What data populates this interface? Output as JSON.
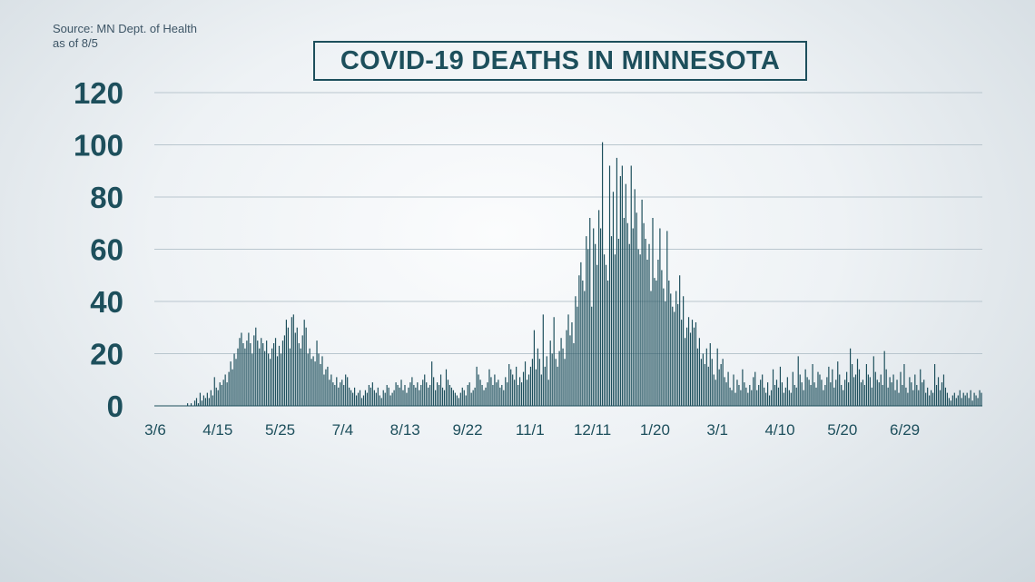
{
  "source": {
    "line1": "Source: MN Dept. of Health",
    "line2": "as of 8/5"
  },
  "title": "COVID-19 DEATHS IN MINNESOTA",
  "colors": {
    "bar": "#1d4f5c",
    "grid": "#b9c6ce",
    "text": "#1d4f5c"
  },
  "chart_data": {
    "type": "bar",
    "title": "COVID-19 DEATHS IN MINNESOTA",
    "xlabel": "",
    "ylabel": "",
    "ylim": [
      0,
      120
    ],
    "yticks": [
      0,
      20,
      40,
      60,
      80,
      100,
      120
    ],
    "xtick_labels": [
      "3/6",
      "4/15",
      "5/25",
      "7/4",
      "8/13",
      "9/22",
      "11/1",
      "12/11",
      "1/20",
      "3/1",
      "4/10",
      "5/20",
      "6/29"
    ],
    "grid": true,
    "legend": "none",
    "series": [
      {
        "values": [
          0,
          0,
          0,
          0,
          0,
          0,
          0,
          0,
          0,
          0,
          0,
          0,
          0,
          0,
          0,
          0,
          0,
          0,
          1,
          0,
          1,
          0,
          2,
          3,
          1,
          5,
          2,
          4,
          3,
          5,
          3,
          6,
          4,
          11,
          7,
          6,
          9,
          8,
          10,
          12,
          9,
          13,
          17,
          14,
          20,
          18,
          22,
          26,
          28,
          24,
          22,
          25,
          28,
          24,
          20,
          27,
          30,
          25,
          22,
          26,
          24,
          21,
          25,
          20,
          18,
          22,
          24,
          26,
          19,
          23,
          20,
          25,
          27,
          33,
          30,
          22,
          34,
          35,
          28,
          30,
          24,
          22,
          27,
          33,
          30,
          20,
          22,
          18,
          19,
          17,
          25,
          20,
          16,
          19,
          12,
          14,
          15,
          10,
          12,
          9,
          8,
          11,
          7,
          9,
          10,
          8,
          12,
          11,
          7,
          6,
          5,
          7,
          4,
          5,
          6,
          3,
          4,
          6,
          5,
          8,
          7,
          9,
          6,
          5,
          7,
          4,
          3,
          6,
          5,
          8,
          7,
          4,
          5,
          6,
          9,
          8,
          7,
          10,
          6,
          8,
          5,
          7,
          9,
          11,
          8,
          7,
          9,
          6,
          8,
          10,
          12,
          9,
          7,
          8,
          17,
          11,
          6,
          9,
          8,
          12,
          7,
          6,
          14,
          10,
          8,
          7,
          6,
          5,
          4,
          3,
          5,
          7,
          6,
          4,
          8,
          9,
          5,
          6,
          7,
          15,
          12,
          10,
          8,
          6,
          7,
          9,
          14,
          11,
          8,
          12,
          9,
          10,
          7,
          8,
          6,
          11,
          9,
          16,
          14,
          12,
          10,
          15,
          8,
          11,
          9,
          13,
          17,
          10,
          12,
          15,
          18,
          29,
          14,
          22,
          18,
          12,
          35,
          15,
          19,
          10,
          25,
          20,
          34,
          18,
          15,
          21,
          26,
          22,
          18,
          29,
          35,
          27,
          32,
          24,
          42,
          38,
          50,
          55,
          48,
          44,
          65,
          60,
          72,
          38,
          68,
          62,
          54,
          75,
          68,
          101,
          58,
          54,
          48,
          92,
          65,
          82,
          58,
          95,
          64,
          88,
          92,
          72,
          85,
          70,
          62,
          92,
          68,
          83,
          74,
          60,
          58,
          79,
          70,
          64,
          56,
          62,
          44,
          72,
          49,
          48,
          56,
          68,
          52,
          45,
          40,
          67,
          48,
          43,
          38,
          36,
          44,
          39,
          50,
          33,
          42,
          26,
          30,
          34,
          28,
          33,
          30,
          32,
          22,
          26,
          18,
          20,
          16,
          22,
          15,
          24,
          18,
          12,
          10,
          22,
          14,
          16,
          18,
          11,
          9,
          13,
          7,
          6,
          12,
          5,
          10,
          8,
          6,
          14,
          9,
          7,
          5,
          8,
          6,
          11,
          13,
          6,
          8,
          10,
          12,
          7,
          5,
          9,
          4,
          6,
          14,
          8,
          10,
          7,
          15,
          9,
          5,
          7,
          11,
          6,
          5,
          13,
          8,
          7,
          19,
          12,
          9,
          6,
          14,
          11,
          10,
          8,
          16,
          9,
          7,
          13,
          12,
          10,
          6,
          8,
          11,
          15,
          9,
          14,
          7,
          10,
          17,
          12,
          8,
          6,
          10,
          13,
          9,
          22,
          16,
          11,
          12,
          18,
          14,
          9,
          10,
          8,
          16,
          12,
          11,
          7,
          19,
          13,
          10,
          9,
          12,
          8,
          21,
          14,
          7,
          11,
          9,
          12,
          6,
          10,
          5,
          13,
          8,
          16,
          7,
          5,
          11,
          9,
          6,
          12,
          8,
          6,
          14,
          9,
          10,
          5,
          7,
          4,
          6,
          5,
          16,
          8,
          11,
          6,
          9,
          12,
          7,
          5,
          3,
          2,
          4,
          5,
          3,
          4,
          6,
          3,
          5,
          4,
          5,
          3,
          6,
          2,
          5,
          4,
          3,
          6,
          5
        ]
      }
    ]
  }
}
